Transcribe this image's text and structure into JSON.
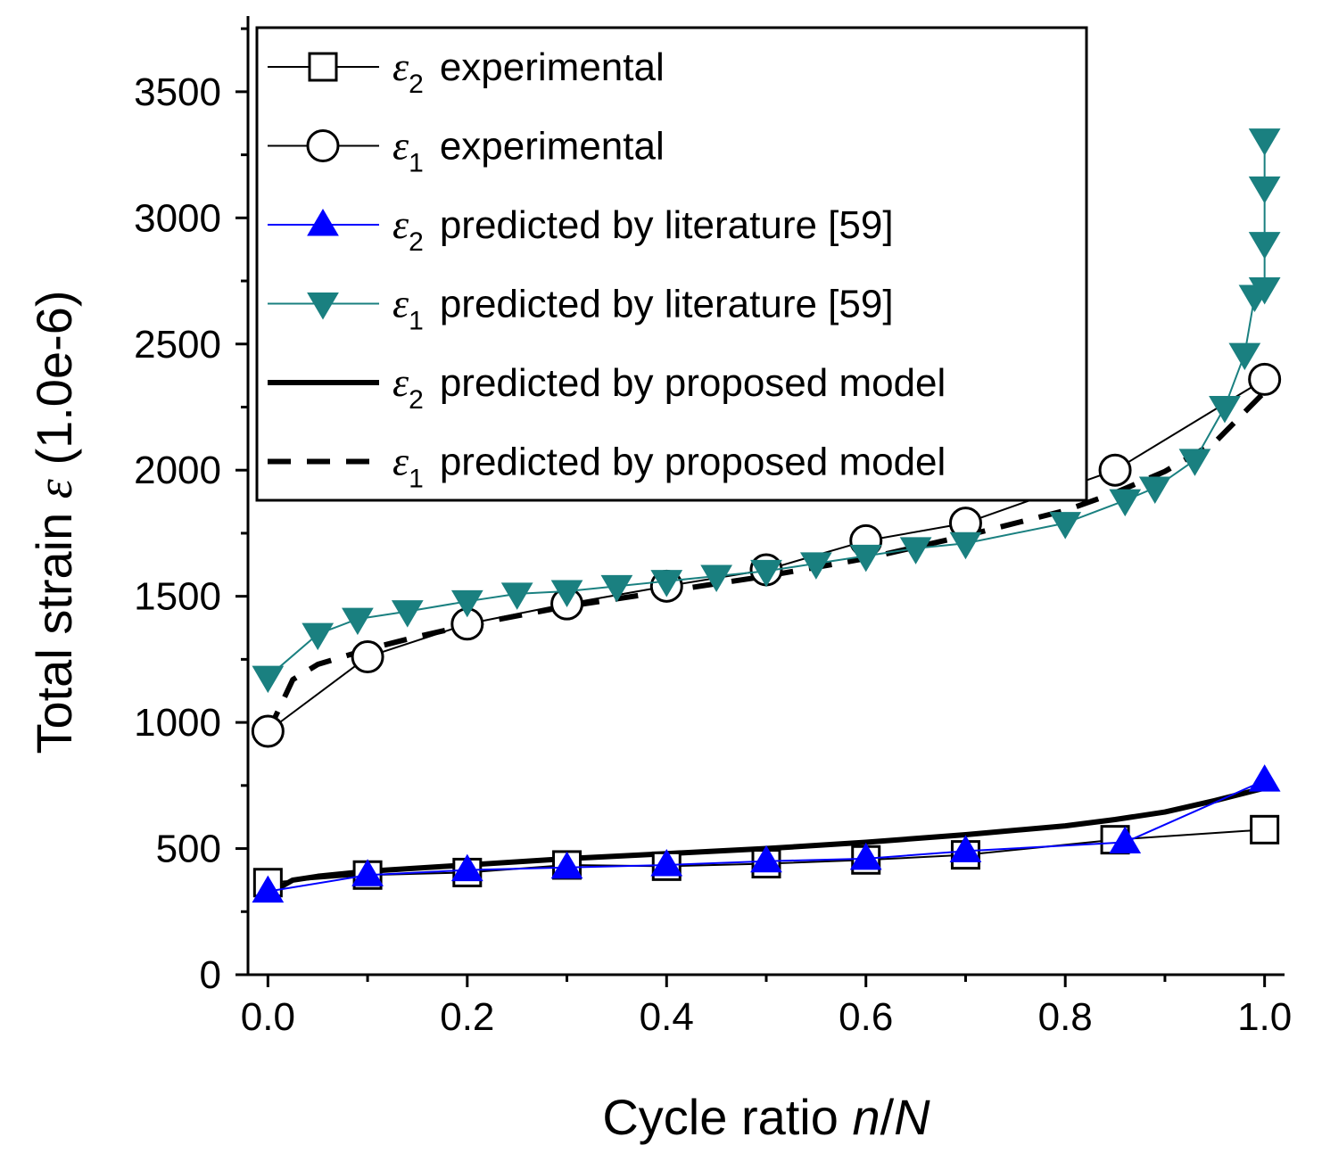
{
  "chart_data": {
    "type": "line",
    "title": "",
    "xlabel": "Cycle ratio n/N",
    "xlabel_parts": {
      "prefix": "Cycle ratio ",
      "n": "n",
      "slash": "/",
      "N": "N"
    },
    "ylabel": "Total strain ε (1.0e-6)",
    "ylabel_parts": {
      "prefix": "Total strain ",
      "symbol": "ε",
      "suffix": " (1.0e-6)"
    },
    "xlim": [
      -0.02,
      1.02
    ],
    "ylim": [
      0,
      3800
    ],
    "x_ticks": [
      0.0,
      0.2,
      0.4,
      0.6,
      0.8,
      1.0
    ],
    "x_tick_labels": [
      "0.0",
      "0.2",
      "0.4",
      "0.6",
      "0.8",
      "1.0"
    ],
    "y_ticks": [
      0,
      500,
      1000,
      1500,
      2000,
      2500,
      3000,
      3500
    ],
    "y_tick_labels": [
      "0",
      "500",
      "1000",
      "1500",
      "2000",
      "2500",
      "3000",
      "3500"
    ],
    "legend_position": "top-left",
    "series": [
      {
        "name": "ε2 experimental",
        "symbol": "ε",
        "subscript": "2",
        "text": "experimental",
        "color": "#000000",
        "marker": "square",
        "line": "solid-thin",
        "x": [
          0.0,
          0.1,
          0.2,
          0.3,
          0.4,
          0.5,
          0.6,
          0.7,
          0.85,
          1.0
        ],
        "y": [
          365,
          395,
          405,
          435,
          430,
          440,
          455,
          475,
          535,
          575
        ]
      },
      {
        "name": "ε1 experimental",
        "symbol": "ε",
        "subscript": "1",
        "text": "experimental",
        "color": "#000000",
        "marker": "circle",
        "line": "solid-thin",
        "x": [
          0.0,
          0.1,
          0.2,
          0.3,
          0.4,
          0.5,
          0.6,
          0.7,
          0.85,
          1.0
        ],
        "y": [
          965,
          1260,
          1390,
          1470,
          1540,
          1605,
          1720,
          1790,
          2000,
          2360
        ]
      },
      {
        "name": "ε2 predicted by literature [59]",
        "symbol": "ε",
        "subscript": "2",
        "text": "predicted by literature [59]",
        "color": "#0000ff",
        "marker": "triangle-up",
        "line": "solid-thin",
        "x": [
          0.0,
          0.1,
          0.2,
          0.3,
          0.4,
          0.5,
          0.6,
          0.7,
          0.86,
          1.0
        ],
        "y": [
          330,
          395,
          415,
          425,
          435,
          450,
          460,
          490,
          525,
          770
        ]
      },
      {
        "name": "ε1 predicted by literature [59]",
        "symbol": "ε",
        "subscript": "1",
        "text": "predicted by literature [59]",
        "color": "#1a8080",
        "marker": "triangle-down",
        "line": "solid-thin",
        "x": [
          0.0,
          0.05,
          0.09,
          0.14,
          0.2,
          0.25,
          0.3,
          0.35,
          0.4,
          0.45,
          0.5,
          0.55,
          0.6,
          0.65,
          0.7,
          0.8,
          0.86,
          0.89,
          0.93,
          0.96,
          0.98,
          0.99,
          1.0,
          1.0,
          1.0,
          1.0
        ],
        "y": [
          1180,
          1350,
          1410,
          1440,
          1480,
          1510,
          1520,
          1540,
          1560,
          1580,
          1600,
          1630,
          1660,
          1690,
          1710,
          1790,
          1880,
          1930,
          2040,
          2250,
          2460,
          2690,
          2720,
          2900,
          3120,
          3310
        ]
      },
      {
        "name": "ε2 predicted by proposed model",
        "symbol": "ε",
        "subscript": "2",
        "text": "predicted by proposed model",
        "color": "#000000",
        "marker": "none",
        "line": "solid-thick",
        "x": [
          0.0,
          0.025,
          0.05,
          0.1,
          0.2,
          0.3,
          0.4,
          0.5,
          0.6,
          0.7,
          0.8,
          0.85,
          0.9,
          0.95,
          1.0
        ],
        "y": [
          320,
          375,
          390,
          410,
          435,
          460,
          480,
          500,
          525,
          555,
          590,
          615,
          645,
          690,
          740
        ]
      },
      {
        "name": "ε1 predicted by proposed model",
        "symbol": "ε",
        "subscript": "1",
        "text": "predicted by proposed model",
        "color": "#000000",
        "marker": "none",
        "line": "dashed-thick",
        "x": [
          0.0,
          0.025,
          0.05,
          0.1,
          0.15,
          0.2,
          0.3,
          0.4,
          0.5,
          0.6,
          0.7,
          0.8,
          0.85,
          0.9,
          0.95,
          1.0
        ],
        "y": [
          960,
          1170,
          1230,
          1290,
          1340,
          1385,
          1460,
          1520,
          1580,
          1650,
          1740,
          1840,
          1910,
          1995,
          2110,
          2310
        ]
      }
    ]
  }
}
